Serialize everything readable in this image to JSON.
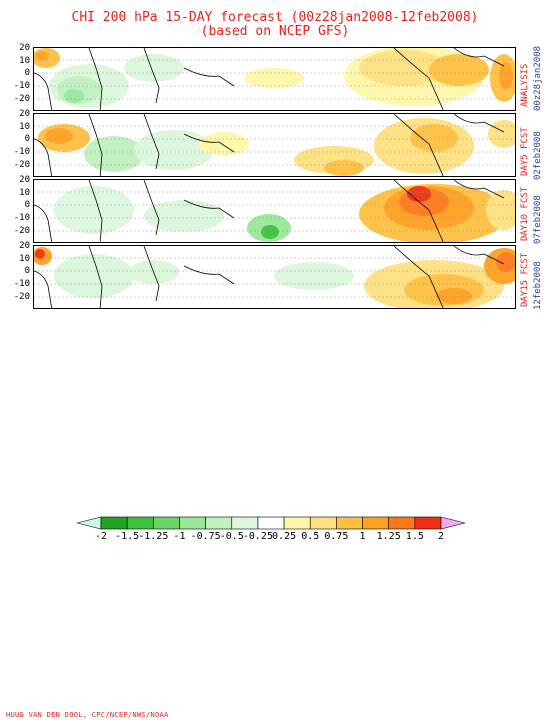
{
  "title": {
    "line1": "CHI 200 hPa 15-DAY forecast (00z28jan2008-12feb2008)",
    "line2": "(based on NCEP GFS)"
  },
  "panels": [
    {
      "label_red": "ANALYSIS",
      "label_blue": "00z28jan2008"
    },
    {
      "label_red": "DAY5 FCST",
      "label_blue": "02feb2008"
    },
    {
      "label_red": "DAY10 FCST",
      "label_blue": "07feb2008"
    },
    {
      "label_red": "DAY15 FCST",
      "label_blue": "12feb2008"
    }
  ],
  "y_ticks": [
    "20",
    "10",
    "0",
    "-10",
    "-20"
  ],
  "colorbar": {
    "labels": [
      "-2",
      "-1.5",
      "-1.25",
      "-1",
      "-0.75",
      "-0.5",
      "-0.25",
      "0.25",
      "0.5",
      "0.75",
      "1",
      "1.25",
      "1.5",
      "2"
    ],
    "colors": [
      "#ccf7e4",
      "#1fa51f",
      "#3cc13c",
      "#6ad66a",
      "#98e898",
      "#bff2bf",
      "#dcf7dc",
      "#ffffff",
      "#fff7a8",
      "#ffe080",
      "#ffc040",
      "#ffa020",
      "#ff7818",
      "#f03010",
      "#f5a8f0"
    ]
  },
  "colors": {
    "title": "#e8231b",
    "date_label": "#2b3fa8"
  },
  "credit": "HUUG VAN DEN DOOL, CPC/NCEP/NWS/NOAA"
}
